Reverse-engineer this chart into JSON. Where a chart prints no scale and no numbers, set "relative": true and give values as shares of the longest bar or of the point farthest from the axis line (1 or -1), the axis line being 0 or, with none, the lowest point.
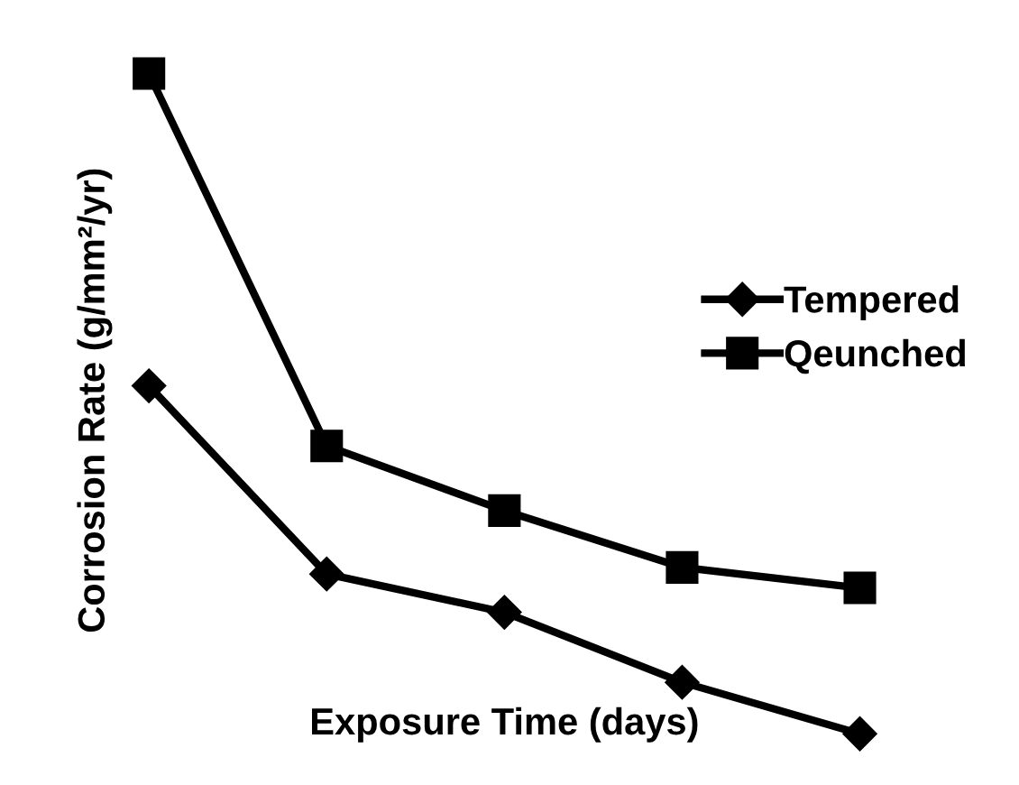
{
  "chart_data": {
    "type": "line",
    "relative": true,
    "xlabel": "Exposure Time (days)",
    "ylabel": "Corrosion Rate (g/mm²/yr)",
    "categories": [
      null,
      null,
      null,
      null,
      null
    ],
    "series": [
      {
        "name": "Tempered",
        "color": "#000000",
        "marker": "diamond",
        "values": [
          0.527,
          0.242,
          0.184,
          0.078,
          0
        ]
      },
      {
        "name": "Qeunched",
        "color": "#000000",
        "marker": "square",
        "values": [
          1,
          0.436,
          0.338,
          0.252,
          0.221
        ]
      }
    ],
    "legend": "right",
    "grid": false,
    "line_style": "solid"
  }
}
